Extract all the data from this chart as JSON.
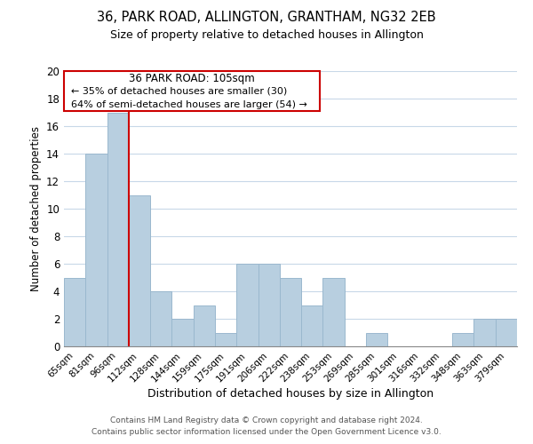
{
  "title": "36, PARK ROAD, ALLINGTON, GRANTHAM, NG32 2EB",
  "subtitle": "Size of property relative to detached houses in Allington",
  "xlabel": "Distribution of detached houses by size in Allington",
  "ylabel": "Number of detached properties",
  "categories": [
    "65sqm",
    "81sqm",
    "96sqm",
    "112sqm",
    "128sqm",
    "144sqm",
    "159sqm",
    "175sqm",
    "191sqm",
    "206sqm",
    "222sqm",
    "238sqm",
    "253sqm",
    "269sqm",
    "285sqm",
    "301sqm",
    "316sqm",
    "332sqm",
    "348sqm",
    "363sqm",
    "379sqm"
  ],
  "values": [
    5,
    14,
    17,
    11,
    4,
    2,
    3,
    1,
    6,
    6,
    5,
    3,
    5,
    0,
    1,
    0,
    0,
    0,
    1,
    2,
    2
  ],
  "bar_color": "#b8cfe0",
  "bar_edge_color": "#9ab8ce",
  "vline_x": 2.5,
  "vline_color": "#cc0000",
  "ylim": [
    0,
    20
  ],
  "yticks": [
    0,
    2,
    4,
    6,
    8,
    10,
    12,
    14,
    16,
    18,
    20
  ],
  "annotation_title": "36 PARK ROAD: 105sqm",
  "annotation_line1": "← 35% of detached houses are smaller (30)",
  "annotation_line2": "64% of semi-detached houses are larger (54) →",
  "footer1": "Contains HM Land Registry data © Crown copyright and database right 2024.",
  "footer2": "Contains public sector information licensed under the Open Government Licence v3.0.",
  "background_color": "#ffffff",
  "grid_color": "#c8d8e8"
}
